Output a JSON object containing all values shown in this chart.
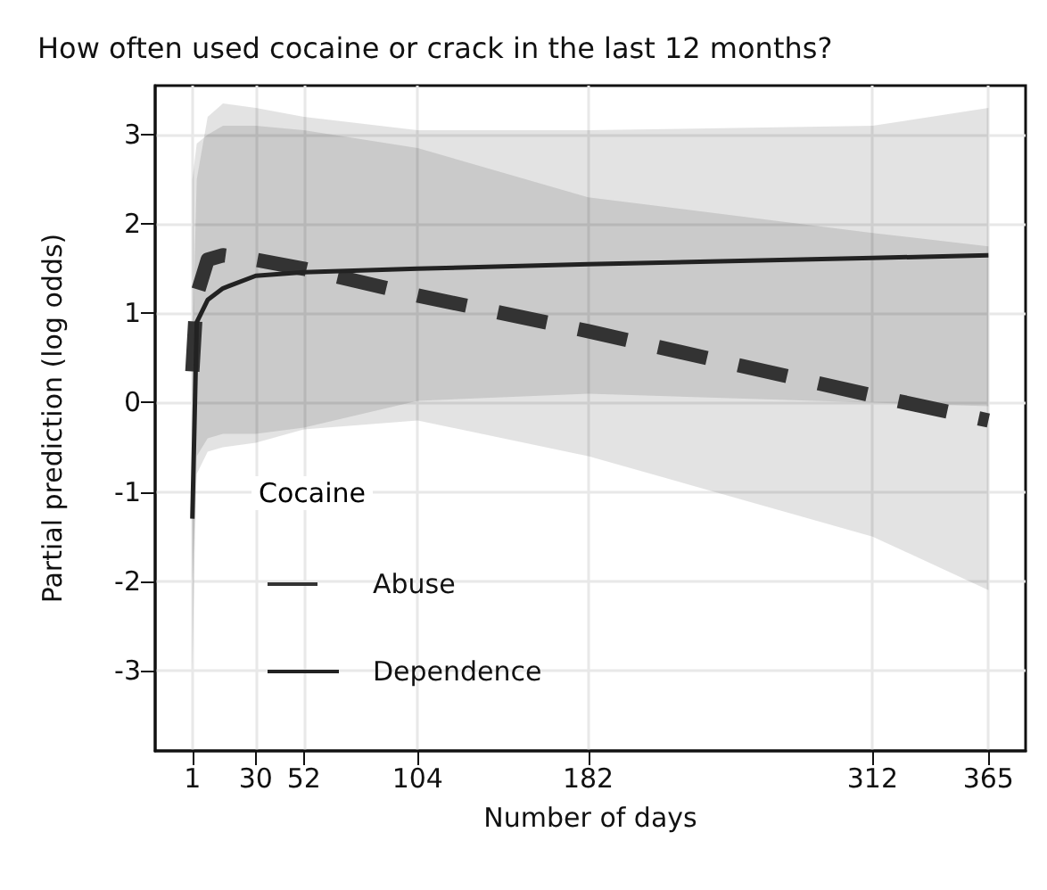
{
  "chart_data": {
    "type": "line",
    "title": "How often used cocaine or crack in the last 12 months?",
    "xlabel": "Number of days",
    "ylabel": "Partial prediction (log odds)",
    "legend_title": "Cocaine",
    "x": [
      1,
      3,
      8,
      15,
      30,
      52,
      104,
      182,
      312,
      365
    ],
    "series": [
      {
        "name": "Abuse",
        "color": "#333333",
        "line_style": "dashed",
        "values": [
          0.35,
          1.2,
          1.6,
          1.65,
          1.6,
          1.5,
          1.2,
          0.8,
          0.08,
          -0.2
        ],
        "upper": [
          2.5,
          2.9,
          3.0,
          3.1,
          3.1,
          3.05,
          2.85,
          2.3,
          1.9,
          1.75
        ],
        "lower": [
          -2.0,
          -0.8,
          -0.55,
          -0.5,
          -0.45,
          -0.3,
          -0.2,
          -0.6,
          -1.5,
          -2.1
        ]
      },
      {
        "name": "Dependence",
        "color": "#222222",
        "line_style": "solid",
        "values": [
          -1.3,
          0.9,
          1.15,
          1.28,
          1.42,
          1.46,
          1.5,
          1.55,
          1.62,
          1.65
        ],
        "upper": [
          0.6,
          2.5,
          3.2,
          3.35,
          3.3,
          3.2,
          3.05,
          3.05,
          3.1,
          3.3
        ],
        "lower": [
          -3.0,
          -0.6,
          -0.4,
          -0.35,
          -0.35,
          -0.28,
          0.02,
          0.1,
          0.0,
          -0.04
        ]
      }
    ],
    "xlim": [
      -16,
      382
    ],
    "xticks": [
      1,
      30,
      52,
      104,
      182,
      312,
      365
    ],
    "ylim": [
      -3.9,
      3.55
    ],
    "yticks": [
      -3,
      -2,
      -1,
      0,
      1,
      2,
      3
    ],
    "grid": true,
    "legend": "bottom left",
    "marker": "none"
  }
}
